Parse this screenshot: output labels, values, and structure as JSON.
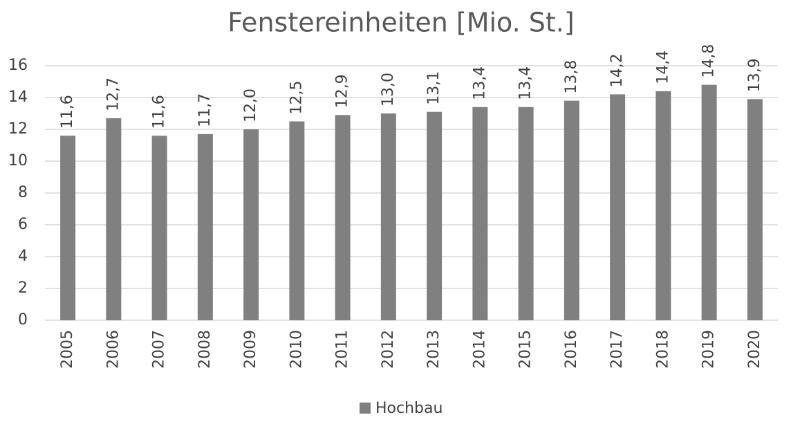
{
  "chart_data": {
    "type": "bar",
    "title": "Fenstereinheiten [Mio. St.]",
    "categories": [
      "2005",
      "2006",
      "2007",
      "2008",
      "2009",
      "2010",
      "2011",
      "2012",
      "2013",
      "2014",
      "2015",
      "2016",
      "2017",
      "2018",
      "2019",
      "2020"
    ],
    "series": [
      {
        "name": "Hochbau",
        "color": "#808080",
        "values": [
          11.6,
          12.7,
          11.6,
          11.7,
          12.0,
          12.5,
          12.9,
          13.0,
          13.1,
          13.4,
          13.4,
          13.8,
          14.2,
          14.4,
          14.8,
          13.9
        ],
        "value_labels": [
          "11,6",
          "12,7",
          "11,6",
          "11,7",
          "12,0",
          "12,5",
          "12,9",
          "13,0",
          "13,1",
          "13,4",
          "13,4",
          "13,8",
          "14,2",
          "14,4",
          "14,8",
          "13,9"
        ]
      }
    ],
    "ylim": [
      0,
      16
    ],
    "yticks": [
      0,
      2,
      4,
      6,
      8,
      10,
      12,
      14,
      16
    ],
    "grid": true,
    "legend": "bottom"
  }
}
